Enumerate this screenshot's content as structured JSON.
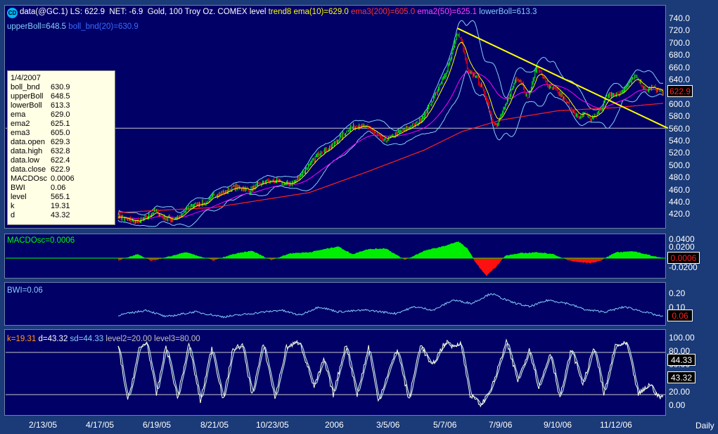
{
  "header": {
    "icon": "cd-icon",
    "symbol": "data(@GC.1)",
    "ls": "LS: 622.9",
    "net": "NET: -6.9",
    "description": "Gold, 100 Troy Oz. COMEX",
    "level": "level",
    "trend": "trend8",
    "ema": "ema(10)=629.0",
    "ema3": "ema3(200)=605.0",
    "ema2": "ema2(50)=625.1",
    "lowerBoll": "lowerBoll=613.3",
    "upperBoll": "upperBoll=648.5",
    "boll_bnd": "boll_bnd(20)=630.9"
  },
  "infobox": {
    "date": "1/4/2007",
    "rows": [
      {
        "label": "boll_bnd",
        "value": "630.9"
      },
      {
        "label": "upperBoll",
        "value": "648.5"
      },
      {
        "label": "lowerBoll",
        "value": "613.3"
      },
      {
        "label": "ema",
        "value": "629.0"
      },
      {
        "label": "ema2",
        "value": "625.1"
      },
      {
        "label": "ema3",
        "value": "605.0"
      },
      {
        "label": "data.open",
        "value": "629.3"
      },
      {
        "label": "data.high",
        "value": "632.8"
      },
      {
        "label": "data.low",
        "value": "622.4"
      },
      {
        "label": "data.close",
        "value": "622.9"
      },
      {
        "label": "MACDOsc",
        "value": "0.0006"
      },
      {
        "label": "BWI",
        "value": "0.06"
      },
      {
        "label": "level",
        "value": "565.1"
      },
      {
        "label": "k",
        "value": "19.31"
      },
      {
        "label": "d",
        "value": "43.32"
      }
    ]
  },
  "price_panel": {
    "last_value": "622.9",
    "ticks": [
      "740.0",
      "720.0",
      "700.0",
      "680.0",
      "660.0",
      "640.0",
      "620.0",
      "600.0",
      "580.0",
      "560.0",
      "540.0",
      "520.0",
      "500.0",
      "480.0",
      "460.0",
      "440.0",
      "420.0"
    ]
  },
  "macd_panel": {
    "label": "MACDOsc=0.0006",
    "value": "0.0006",
    "ticks": [
      "0.0400",
      "0.0200",
      "-0.0200"
    ]
  },
  "bwi_panel": {
    "label": "BWI=0.06",
    "value": "0.06",
    "ticks": [
      "0.20",
      "0.10"
    ]
  },
  "stoch_panel": {
    "label_k": "k=19.31",
    "label_d": "d=43.32",
    "label_sd": "sd=44.33",
    "label_level2": "level2=20.00",
    "label_level3": "level3=80.00",
    "value_sd": "44.33",
    "value_d": "43.32",
    "ticks": [
      "100.00",
      "80.00",
      "60.00",
      "40.00",
      "20.00",
      "0.00"
    ]
  },
  "x_axis": {
    "labels": [
      "2/13/05",
      "4/17/05",
      "6/19/05",
      "8/21/05",
      "10/23/05",
      "2006",
      "3/5/06",
      "5/7/06",
      "7/9/06",
      "9/10/06",
      "11/12/06"
    ],
    "period": "Daily"
  },
  "colors": {
    "background": "#1a3a78",
    "panel": "#000066",
    "up_candle": "#00ff00",
    "down_candle": "#ff0000",
    "bollinger": "#87cefa",
    "ema": "#ffff00",
    "ema2": "#ff00ff",
    "ema3": "#ff2020",
    "trendline": "#ffff00",
    "stoch_k": "#ffffe0",
    "stoch_d": "#add8e6"
  },
  "chart_data": {
    "type": "candlestick",
    "title": "data(@GC.1) Gold, 100 Troy Oz. COMEX",
    "ylim": [
      410,
      745
    ],
    "level": 565.1,
    "price_keypoints": [
      [
        0,
        425
      ],
      [
        10,
        418
      ],
      [
        22,
        415
      ],
      [
        32,
        425
      ],
      [
        38,
        433
      ],
      [
        48,
        422
      ],
      [
        58,
        418
      ],
      [
        66,
        425
      ],
      [
        75,
        440
      ],
      [
        85,
        445
      ],
      [
        92,
        445
      ],
      [
        100,
        458
      ],
      [
        110,
        462
      ],
      [
        120,
        470
      ],
      [
        130,
        470
      ],
      [
        138,
        465
      ],
      [
        146,
        475
      ],
      [
        156,
        480
      ],
      [
        166,
        480
      ],
      [
        175,
        475
      ],
      [
        184,
        478
      ],
      [
        192,
        492
      ],
      [
        202,
        510
      ],
      [
        212,
        528
      ],
      [
        222,
        535
      ],
      [
        232,
        550
      ],
      [
        242,
        565
      ],
      [
        252,
        570
      ],
      [
        262,
        565
      ],
      [
        270,
        555
      ],
      [
        278,
        545
      ],
      [
        288,
        553
      ],
      [
        296,
        560
      ],
      [
        306,
        568
      ],
      [
        314,
        575
      ],
      [
        322,
        590
      ],
      [
        332,
        620
      ],
      [
        342,
        650
      ],
      [
        350,
        690
      ],
      [
        355,
        718
      ],
      [
        360,
        700
      ],
      [
        366,
        655
      ],
      [
        374,
        648
      ],
      [
        380,
        632
      ],
      [
        386,
        610
      ],
      [
        391,
        580
      ],
      [
        396,
        568
      ],
      [
        402,
        590
      ],
      [
        410,
        620
      ],
      [
        416,
        645
      ],
      [
        422,
        640
      ],
      [
        428,
        612
      ],
      [
        432,
        630
      ],
      [
        438,
        665
      ],
      [
        444,
        648
      ],
      [
        450,
        632
      ],
      [
        456,
        628
      ],
      [
        462,
        620
      ],
      [
        468,
        610
      ],
      [
        474,
        598
      ],
      [
        478,
        585
      ],
      [
        482,
        582
      ],
      [
        488,
        590
      ],
      [
        494,
        580
      ],
      [
        500,
        585
      ],
      [
        506,
        598
      ],
      [
        510,
        615
      ],
      [
        516,
        622
      ],
      [
        524,
        620
      ],
      [
        530,
        630
      ],
      [
        536,
        640
      ],
      [
        540,
        648
      ],
      [
        546,
        638
      ],
      [
        552,
        625
      ],
      [
        558,
        630
      ],
      [
        562,
        629
      ],
      [
        566,
        625
      ],
      [
        570,
        622.9
      ]
    ],
    "ema3_keypoints": [
      [
        0,
        430
      ],
      [
        100,
        438
      ],
      [
        200,
        462
      ],
      [
        260,
        495
      ],
      [
        320,
        530
      ],
      [
        360,
        560
      ],
      [
        400,
        578
      ],
      [
        460,
        593
      ],
      [
        520,
        598
      ],
      [
        570,
        605
      ]
    ],
    "trendline": [
      [
        355,
        725
      ],
      [
        575,
        565
      ]
    ],
    "macd_keypoints": [
      [
        0,
        -0.005
      ],
      [
        20,
        0.008
      ],
      [
        35,
        -0.006
      ],
      [
        55,
        0.004
      ],
      [
        70,
        0.012
      ],
      [
        85,
        0.004
      ],
      [
        100,
        -0.005
      ],
      [
        120,
        0.008
      ],
      [
        140,
        0.015
      ],
      [
        160,
        -0.004
      ],
      [
        180,
        0.01
      ],
      [
        200,
        0.012
      ],
      [
        230,
        0.024
      ],
      [
        245,
        0.008
      ],
      [
        260,
        0.018
      ],
      [
        280,
        0.02
      ],
      [
        300,
        -0.004
      ],
      [
        320,
        0.015
      ],
      [
        340,
        0.024
      ],
      [
        356,
        0.034
      ],
      [
        365,
        0.02
      ],
      [
        375,
        -0.012
      ],
      [
        385,
        -0.036
      ],
      [
        395,
        -0.018
      ],
      [
        405,
        0.005
      ],
      [
        420,
        0.01
      ],
      [
        440,
        0.012
      ],
      [
        455,
        0.008
      ],
      [
        470,
        -0.004
      ],
      [
        480,
        -0.008
      ],
      [
        495,
        -0.01
      ],
      [
        505,
        -0.005
      ],
      [
        520,
        0.012
      ],
      [
        540,
        0.014
      ],
      [
        560,
        0.004
      ],
      [
        570,
        0.0006
      ]
    ],
    "bwi_keypoints": [
      [
        0,
        0.07
      ],
      [
        30,
        0.1
      ],
      [
        50,
        0.06
      ],
      [
        80,
        0.09
      ],
      [
        110,
        0.06
      ],
      [
        140,
        0.08
      ],
      [
        170,
        0.1
      ],
      [
        190,
        0.07
      ],
      [
        210,
        0.12
      ],
      [
        230,
        0.09
      ],
      [
        260,
        0.1
      ],
      [
        290,
        0.08
      ],
      [
        310,
        0.12
      ],
      [
        330,
        0.1
      ],
      [
        350,
        0.16
      ],
      [
        370,
        0.14
      ],
      [
        390,
        0.2
      ],
      [
        410,
        0.15
      ],
      [
        430,
        0.12
      ],
      [
        450,
        0.16
      ],
      [
        470,
        0.14
      ],
      [
        490,
        0.1
      ],
      [
        510,
        0.09
      ],
      [
        530,
        0.12
      ],
      [
        550,
        0.09
      ],
      [
        570,
        0.06
      ]
    ],
    "stoch_keypoints": [
      [
        0,
        90
      ],
      [
        10,
        10
      ],
      [
        22,
        85
      ],
      [
        30,
        95
      ],
      [
        40,
        20
      ],
      [
        50,
        90
      ],
      [
        62,
        15
      ],
      [
        74,
        92
      ],
      [
        86,
        10
      ],
      [
        98,
        88
      ],
      [
        110,
        12
      ],
      [
        120,
        85
      ],
      [
        130,
        90
      ],
      [
        140,
        20
      ],
      [
        152,
        92
      ],
      [
        164,
        15
      ],
      [
        176,
        88
      ],
      [
        190,
        95
      ],
      [
        205,
        30
      ],
      [
        215,
        70
      ],
      [
        225,
        20
      ],
      [
        238,
        92
      ],
      [
        250,
        20
      ],
      [
        262,
        88
      ],
      [
        272,
        10
      ],
      [
        282,
        50
      ],
      [
        292,
        85
      ],
      [
        304,
        12
      ],
      [
        316,
        92
      ],
      [
        328,
        60
      ],
      [
        342,
        95
      ],
      [
        350,
        88
      ],
      [
        358,
        95
      ],
      [
        368,
        20
      ],
      [
        380,
        5
      ],
      [
        392,
        35
      ],
      [
        406,
        95
      ],
      [
        418,
        40
      ],
      [
        430,
        85
      ],
      [
        440,
        30
      ],
      [
        452,
        80
      ],
      [
        462,
        15
      ],
      [
        474,
        85
      ],
      [
        486,
        35
      ],
      [
        498,
        88
      ],
      [
        508,
        20
      ],
      [
        520,
        90
      ],
      [
        532,
        92
      ],
      [
        544,
        20
      ],
      [
        556,
        35
      ],
      [
        566,
        15
      ],
      [
        570,
        19.31
      ]
    ],
    "x_tick_labels": [
      "2/13/05",
      "4/17/05",
      "6/19/05",
      "8/21/05",
      "10/23/05",
      "2006",
      "3/5/06",
      "5/7/06",
      "7/9/06",
      "9/10/06",
      "11/12/06"
    ]
  }
}
